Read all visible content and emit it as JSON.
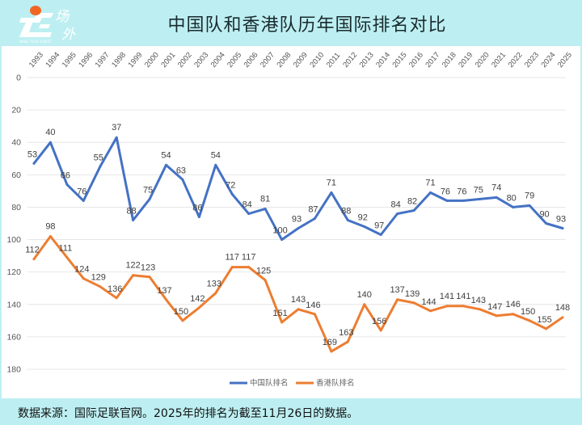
{
  "header": {
    "logo_text": "场外",
    "logo_subtext": "MAKE TOUR A BEST",
    "title": "中国队和香港队历年国际排名对比"
  },
  "footer": {
    "note": "数据来源：国际足联官网。2025年的排名为截至11月26日的数据。"
  },
  "colors": {
    "china": "#4472c4",
    "hongkong": "#ed7d31",
    "background": "#bdeff2",
    "logo_orange": "#f26522"
  },
  "chart_data": {
    "type": "line",
    "title": "中国队和香港队历年国际排名对比",
    "xlabel": "",
    "ylabel": "",
    "y_inverted": true,
    "ylim": [
      0,
      180
    ],
    "yticks": [
      0,
      20,
      40,
      60,
      80,
      100,
      120,
      140,
      160,
      180
    ],
    "grid": true,
    "legend_position": "bottom",
    "x": [
      "1993",
      "1994",
      "1995",
      "1996",
      "1997",
      "1998",
      "1999",
      "2000",
      "2001",
      "2002",
      "2003",
      "2004",
      "2005",
      "2006",
      "2007",
      "2008",
      "2009",
      "2010",
      "2011",
      "2012",
      "2013",
      "2014",
      "2015",
      "2016",
      "2017",
      "2018",
      "2019",
      "2020",
      "2021",
      "2022",
      "2023",
      "2024",
      "2025"
    ],
    "series": [
      {
        "name": "中国队排名",
        "color": "#4472c4",
        "values": [
          53,
          40,
          66,
          76,
          55,
          37,
          88,
          75,
          54,
          63,
          86,
          54,
          72,
          84,
          81,
          100,
          93,
          87,
          71,
          88,
          92,
          97,
          84,
          82,
          71,
          76,
          76,
          75,
          74,
          80,
          79,
          90,
          93
        ]
      },
      {
        "name": "香港队排名",
        "color": "#ed7d31",
        "values": [
          112,
          98,
          111,
          124,
          129,
          136,
          122,
          123,
          137,
          150,
          142,
          133,
          117,
          117,
          125,
          151,
          143,
          146,
          169,
          163,
          140,
          156,
          137,
          139,
          144,
          141,
          141,
          143,
          147,
          146,
          150,
          155,
          148
        ]
      }
    ]
  }
}
